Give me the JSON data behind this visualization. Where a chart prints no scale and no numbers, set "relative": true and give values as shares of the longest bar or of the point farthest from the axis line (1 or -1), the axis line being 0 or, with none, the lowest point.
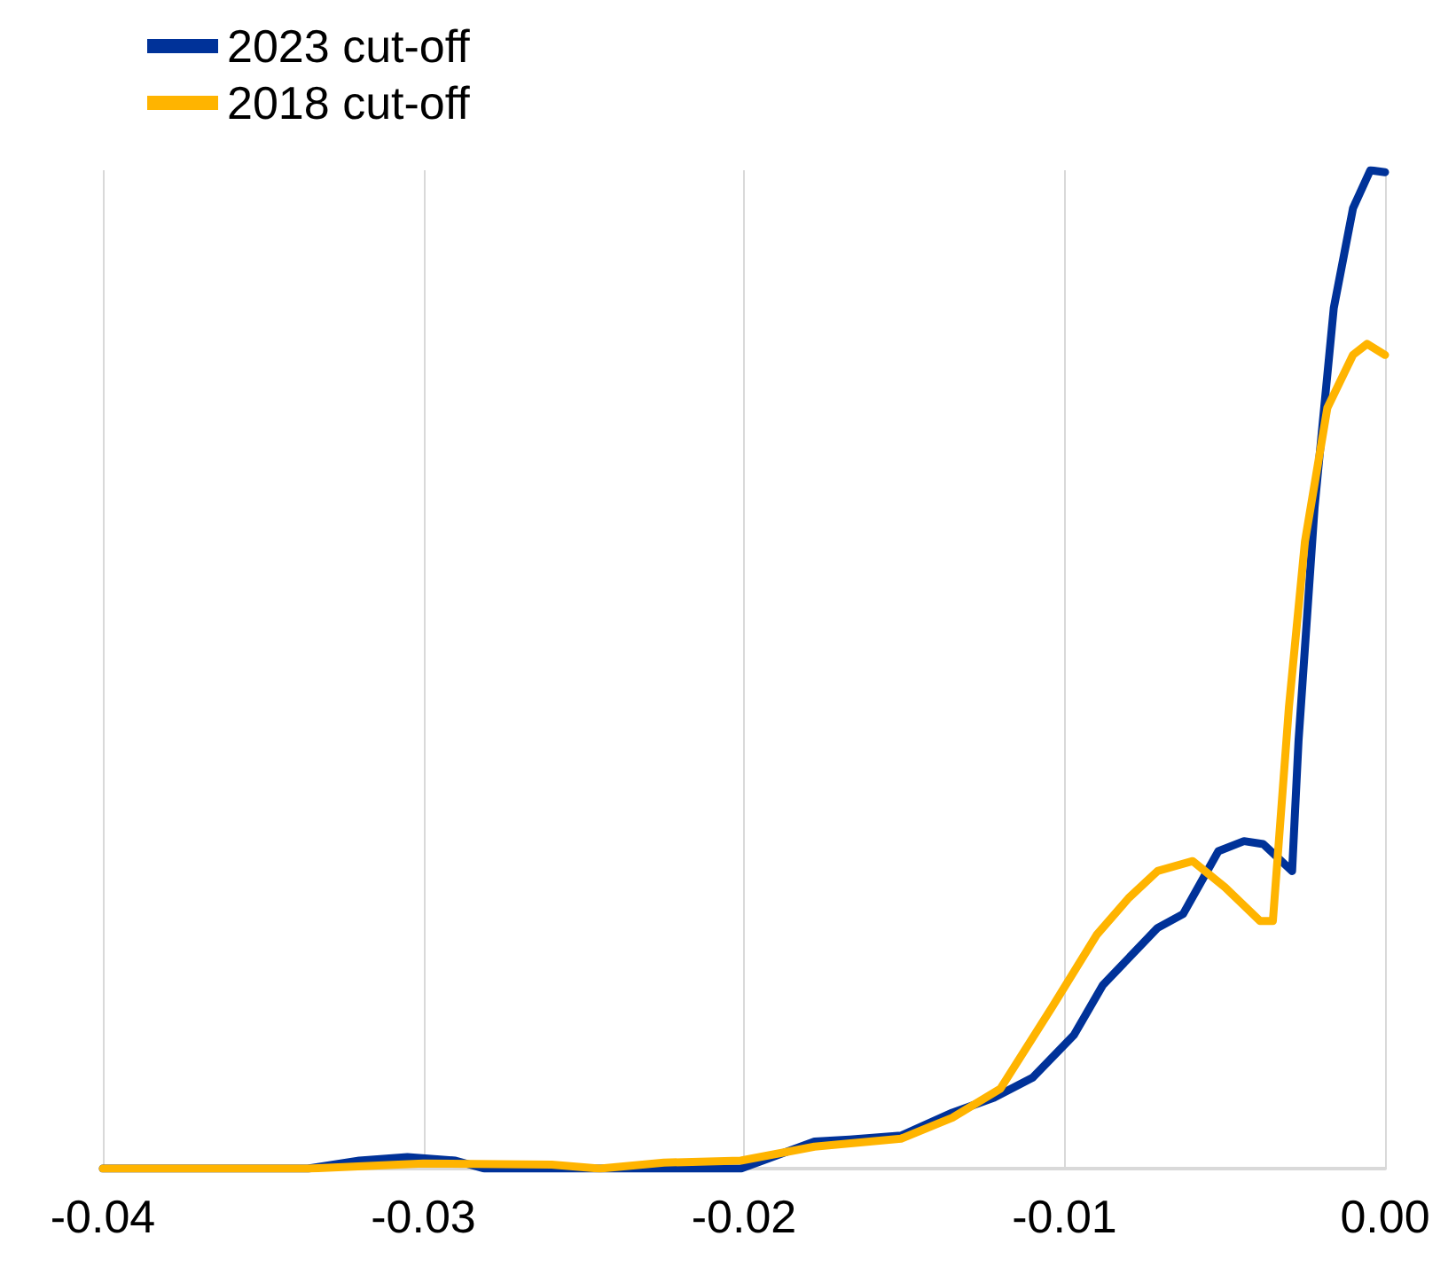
{
  "chart_data": {
    "type": "line",
    "relative": true,
    "xlim": [
      -0.04,
      0
    ],
    "xticks": [
      -0.04,
      -0.03,
      -0.02,
      -0.01,
      {
        "value": 0,
        "label": "0.00"
      }
    ],
    "grid": "x",
    "legend": "top left",
    "line_style": "solid",
    "marker": "none",
    "series": [
      {
        "name": "2023 cut-off",
        "color": "#003299",
        "x": [
          -0.04,
          -0.0336,
          -0.032,
          -0.0305,
          -0.029,
          -0.0281,
          -0.0201,
          -0.0178,
          -0.0167,
          -0.0151,
          -0.0135,
          -0.0122,
          -0.011,
          -0.0097,
          -0.0088,
          -0.0071,
          -0.0063,
          -0.0052,
          -0.0044,
          -0.0038,
          -0.0029,
          -0.0027,
          -0.0022,
          -0.0016,
          -0.001,
          -0.00046,
          0
        ],
        "values": [
          0,
          0,
          0.008,
          0.0115,
          0.008,
          0,
          0,
          0.027,
          0.029,
          0.033,
          0.056,
          0.071,
          0.091,
          0.134,
          0.184,
          0.241,
          0.255,
          0.318,
          0.328,
          0.325,
          0.298,
          0.428,
          0.662,
          0.862,
          0.962,
          1,
          0.998
        ]
      },
      {
        "name": "2018 cut-off",
        "color": "#ffb400",
        "x": [
          -0.04,
          -0.0336,
          -0.03,
          -0.026,
          -0.0245,
          -0.0225,
          -0.0201,
          -0.0178,
          -0.0151,
          -0.0135,
          -0.012,
          -0.0104,
          -0.009,
          -0.008,
          -0.0071,
          -0.006,
          -0.005,
          -0.0039,
          -0.0035,
          -0.003,
          -0.0025,
          -0.0018,
          -0.001,
          -0.00056,
          0
        ],
        "values": [
          0,
          0,
          0.005,
          0.004,
          0,
          0.006,
          0.008,
          0.022,
          0.03,
          0.051,
          0.08,
          0.161,
          0.234,
          0.271,
          0.298,
          0.308,
          0.282,
          0.248,
          0.248,
          0.462,
          0.628,
          0.762,
          0.815,
          0.826,
          0.815
        ]
      }
    ]
  }
}
